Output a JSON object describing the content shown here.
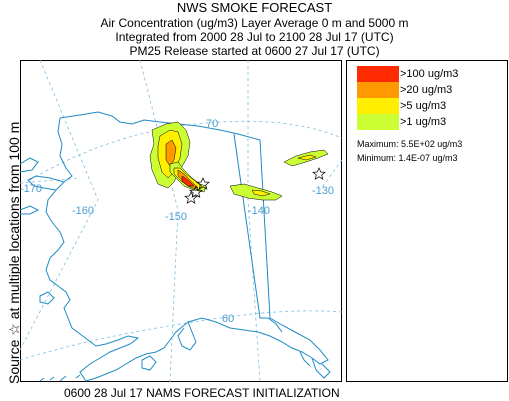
{
  "header": {
    "title": "NWS SMOKE FORECAST",
    "line2": "Air Concentration (ug/m3) Layer Average    0 m and  5000 m",
    "line3": "Integrated from 2000 28 Jul to 2100 28 Jul 17 (UTC)",
    "line4": "PM25 Release started at 0600 27 Jul 17 (UTC)"
  },
  "side_label": "Source ☆ at multiple locations  from   100 m",
  "footer": "0600 28 Jul 17 NAMS FORECAST INITIALIZATION",
  "legend": {
    "items": [
      {
        "label": ">100 ug/m3",
        "color": "#ff2a00"
      },
      {
        "label": ">20 ug/m3",
        "color": "#ff9900"
      },
      {
        "label": ">5 ug/m3",
        "color": "#ffee00"
      },
      {
        "label": ">1 ug/m3",
        "color": "#ccff33"
      }
    ],
    "maximum": "Maximum: 5.5E+02 ug/m3",
    "minimum": "Minimum: 1.4E-07 ug/m3"
  },
  "map": {
    "graticule_labels": {
      "lat70": "70",
      "lat60": "60",
      "lon170": "-170",
      "lon160": "-160",
      "lon150": "-150",
      "lon140": "-140",
      "lon130": "-130"
    },
    "colors": {
      "coast": "#1f8bc4",
      "graticule": "#7fbde0",
      "border": "#1f8bc4",
      "source_star": "#000000"
    }
  }
}
